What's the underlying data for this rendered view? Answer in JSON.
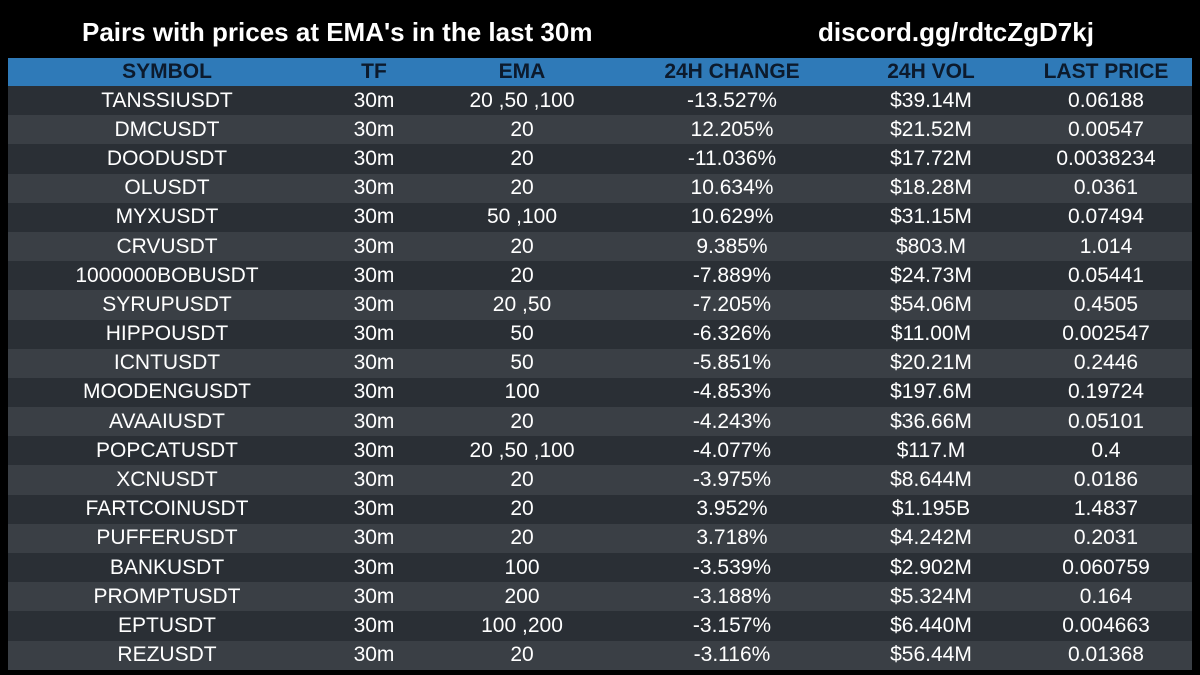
{
  "header": {
    "title": "Pairs with prices at EMA's in the last 30m",
    "link": "discord.gg/rdtcZgD7kj"
  },
  "table": {
    "columns": [
      "SYMBOL",
      "TF",
      "EMA",
      "24H CHANGE",
      "24H VOL",
      "LAST PRICE"
    ],
    "rows": [
      [
        "TANSSIUSDT",
        "30m",
        "20 ,50 ,100",
        "-13.527%",
        "$39.14M",
        "0.06188"
      ],
      [
        "DMCUSDT",
        "30m",
        "20",
        "12.205%",
        "$21.52M",
        "0.00547"
      ],
      [
        "DOODUSDT",
        "30m",
        "20",
        "-11.036%",
        "$17.72M",
        "0.0038234"
      ],
      [
        "OLUSDT",
        "30m",
        "20",
        "10.634%",
        "$18.28M",
        "0.0361"
      ],
      [
        "MYXUSDT",
        "30m",
        "50 ,100",
        "10.629%",
        "$31.15M",
        "0.07494"
      ],
      [
        "CRVUSDT",
        "30m",
        "20",
        "9.385%",
        "$803.M",
        "1.014"
      ],
      [
        "1000000BOBUSDT",
        "30m",
        "20",
        "-7.889%",
        "$24.73M",
        "0.05441"
      ],
      [
        "SYRUPUSDT",
        "30m",
        "20 ,50",
        "-7.205%",
        "$54.06M",
        "0.4505"
      ],
      [
        "HIPPOUSDT",
        "30m",
        "50",
        "-6.326%",
        "$11.00M",
        "0.002547"
      ],
      [
        "ICNTUSDT",
        "30m",
        "50",
        "-5.851%",
        "$20.21M",
        "0.2446"
      ],
      [
        "MOODENGUSDT",
        "30m",
        "100",
        "-4.853%",
        "$197.6M",
        "0.19724"
      ],
      [
        "AVAAIUSDT",
        "30m",
        "20",
        "-4.243%",
        "$36.66M",
        "0.05101"
      ],
      [
        "POPCATUSDT",
        "30m",
        "20 ,50 ,100",
        "-4.077%",
        "$117.M",
        "0.4"
      ],
      [
        "XCNUSDT",
        "30m",
        "20",
        "-3.975%",
        "$8.644M",
        "0.0186"
      ],
      [
        "FARTCOINUSDT",
        "30m",
        "20",
        "3.952%",
        "$1.195B",
        "1.4837"
      ],
      [
        "PUFFERUSDT",
        "30m",
        "20",
        "3.718%",
        "$4.242M",
        "0.2031"
      ],
      [
        "BANKUSDT",
        "30m",
        "100",
        "-3.539%",
        "$2.902M",
        "0.060759"
      ],
      [
        "PROMPTUSDT",
        "30m",
        "200",
        "-3.188%",
        "$5.324M",
        "0.164"
      ],
      [
        "EPTUSDT",
        "30m",
        "100 ,200",
        "-3.157%",
        "$6.440M",
        "0.004663"
      ],
      [
        "REZUSDT",
        "30m",
        "20",
        "-3.116%",
        "$56.44M",
        "0.01368"
      ]
    ]
  },
  "colors": {
    "background": "#000000",
    "header_row": "#2f7ab8",
    "row_dark": "#2a2f35",
    "row_light": "#3a3f45"
  }
}
